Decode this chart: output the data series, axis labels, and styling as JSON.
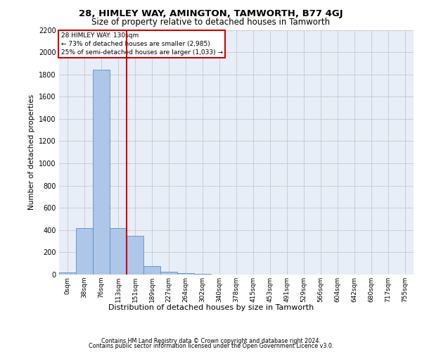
{
  "title1": "28, HIMLEY WAY, AMINGTON, TAMWORTH, B77 4GJ",
  "title2": "Size of property relative to detached houses in Tamworth",
  "xlabel": "Distribution of detached houses by size in Tamworth",
  "ylabel": "Number of detached properties",
  "footnote1": "Contains HM Land Registry data © Crown copyright and database right 2024.",
  "footnote2": "Contains public sector information licensed under the Open Government Licence v3.0.",
  "annotation_line1": "28 HIMLEY WAY: 130sqm",
  "annotation_line2": "← 73% of detached houses are smaller (2,985)",
  "annotation_line3": "25% of semi-detached houses are larger (1,033) →",
  "bar_labels": [
    "0sqm",
    "38sqm",
    "76sqm",
    "113sqm",
    "151sqm",
    "189sqm",
    "227sqm",
    "264sqm",
    "302sqm",
    "340sqm",
    "378sqm",
    "415sqm",
    "453sqm",
    "491sqm",
    "529sqm",
    "566sqm",
    "604sqm",
    "642sqm",
    "680sqm",
    "717sqm",
    "755sqm"
  ],
  "bar_values": [
    20,
    420,
    1840,
    420,
    350,
    75,
    25,
    15,
    5,
    2,
    1,
    0,
    0,
    0,
    0,
    0,
    0,
    0,
    0,
    0,
    0
  ],
  "bar_color": "#aec6e8",
  "bar_edgecolor": "#5a8fc0",
  "red_line_x": 3.5,
  "red_line_color": "#cc0000",
  "annotation_box_color": "#cc0000",
  "ylim": [
    0,
    2200
  ],
  "yticks": [
    0,
    200,
    400,
    600,
    800,
    1000,
    1200,
    1400,
    1600,
    1800,
    2000,
    2200
  ],
  "grid_color": "#cccccc",
  "bg_color": "#e8eef8",
  "fig_bg": "#ffffff"
}
